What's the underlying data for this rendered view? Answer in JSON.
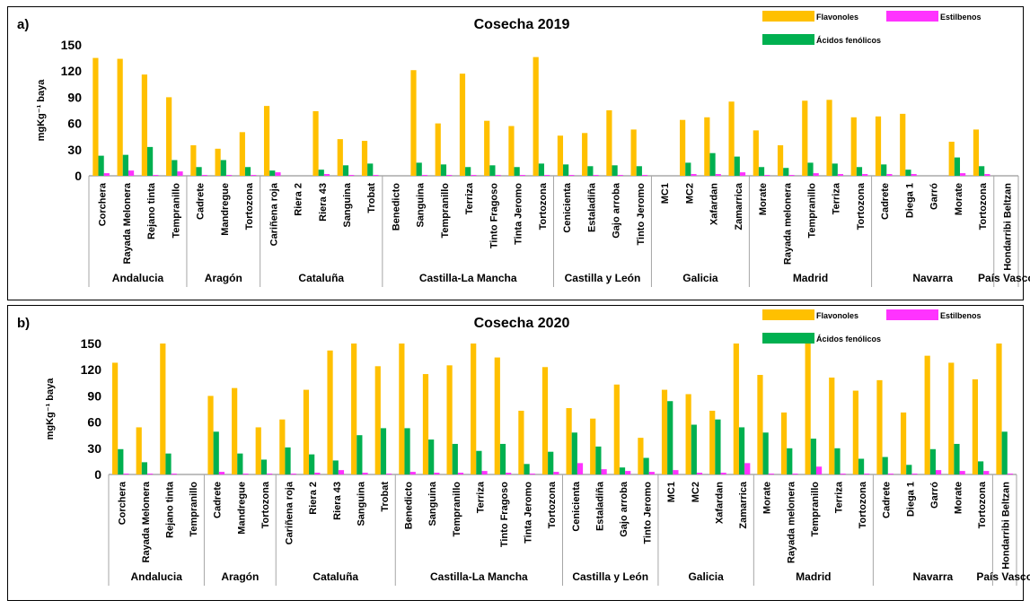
{
  "colors": {
    "flavonoles": "#FFC000",
    "acidos": "#00B050",
    "estilbenos": "#FF33FF"
  },
  "chart_data": [
    {
      "type": "bar",
      "panel_label": "a)",
      "title": "Cosecha 2019",
      "ylabel": "mgKg⁻¹ baya",
      "ylim": [
        0,
        150
      ],
      "yticks": [
        0,
        30,
        60,
        90,
        120,
        150
      ],
      "legend": {
        "placement": "top-right"
      },
      "series_names": [
        "Flavonoles",
        "Estilbenos",
        "Ácidos fenólicos"
      ],
      "groups": [
        "Andalucia",
        "Aragón",
        "Cataluña",
        "Castilla-La Mancha",
        "Castilla y León",
        "Galicia",
        "Madrid",
        "Navarra",
        "País Vasco"
      ],
      "categories": [
        {
          "label": "Corchera",
          "group": "Andalucia"
        },
        {
          "label": "Rayada Melonera",
          "group": "Andalucia"
        },
        {
          "label": "Rejano tinta",
          "group": "Andalucia"
        },
        {
          "label": "Tempranillo",
          "group": "Andalucia"
        },
        {
          "label": "Cadrete",
          "group": "Aragón"
        },
        {
          "label": "Mandregue",
          "group": "Aragón"
        },
        {
          "label": "Tortozona",
          "group": "Aragón"
        },
        {
          "label": "Cariñena roja",
          "group": "Cataluña"
        },
        {
          "label": "Riera 2",
          "group": "Cataluña"
        },
        {
          "label": "Riera 43",
          "group": "Cataluña"
        },
        {
          "label": "Sanguina",
          "group": "Cataluña"
        },
        {
          "label": "Trobat",
          "group": "Cataluña"
        },
        {
          "label": "Benedicto",
          "group": "Castilla-La Mancha"
        },
        {
          "label": "Sanguina",
          "group": "Castilla-La Mancha"
        },
        {
          "label": "Tempranillo",
          "group": "Castilla-La Mancha"
        },
        {
          "label": "Terriza",
          "group": "Castilla-La Mancha"
        },
        {
          "label": "Tinto Fragoso",
          "group": "Castilla-La Mancha"
        },
        {
          "label": "Tinta Jeromo",
          "group": "Castilla-La Mancha"
        },
        {
          "label": "Tortozona",
          "group": "Castilla-La Mancha"
        },
        {
          "label": "Cenicienta",
          "group": "Castilla y León"
        },
        {
          "label": "Estaladiña",
          "group": "Castilla y León"
        },
        {
          "label": "Gajo arroba",
          "group": "Castilla y León"
        },
        {
          "label": "Tinto Jeromo",
          "group": "Castilla y León"
        },
        {
          "label": "MC1",
          "group": "Galicia"
        },
        {
          "label": "MC2",
          "group": "Galicia"
        },
        {
          "label": "Xafardan",
          "group": "Galicia"
        },
        {
          "label": "Zamarrica",
          "group": "Galicia"
        },
        {
          "label": "Morate",
          "group": "Madrid"
        },
        {
          "label": "Rayada melonera",
          "group": "Madrid"
        },
        {
          "label": "Tempranillo",
          "group": "Madrid"
        },
        {
          "label": "Terriza",
          "group": "Madrid"
        },
        {
          "label": "Tortozona",
          "group": "Madrid"
        },
        {
          "label": "Cadrete",
          "group": "Navarra"
        },
        {
          "label": "Diega 1",
          "group": "Navarra"
        },
        {
          "label": "Garró",
          "group": "Navarra"
        },
        {
          "label": "Morate",
          "group": "Navarra"
        },
        {
          "label": "Tortozona",
          "group": "Navarra"
        },
        {
          "label": "Hondarribi Beltzan",
          "group": "País Vasco"
        }
      ],
      "series": [
        {
          "name": "Flavonoles",
          "values": [
            135,
            134,
            116,
            90,
            35,
            31,
            50,
            80,
            0,
            74,
            42,
            40,
            0,
            121,
            60,
            117,
            63,
            57,
            136,
            46,
            49,
            75,
            53,
            0,
            64,
            67,
            85,
            52,
            35,
            86,
            87,
            67,
            68,
            71,
            0,
            39,
            53,
            0
          ]
        },
        {
          "name": "Ácidos fenólicos",
          "values": [
            23,
            24,
            33,
            18,
            10,
            18,
            10,
            6,
            0,
            7,
            12,
            14,
            0,
            15,
            13,
            10,
            12,
            10,
            14,
            13,
            11,
            12,
            11,
            0,
            15,
            26,
            22,
            10,
            9,
            15,
            14,
            10,
            13,
            7,
            0,
            21,
            11,
            0
          ]
        },
        {
          "name": "Estilbenos",
          "values": [
            3,
            6,
            1,
            5,
            1,
            1,
            1,
            4,
            0,
            2,
            1,
            1,
            0,
            1,
            1,
            1,
            1,
            1,
            1,
            1,
            1,
            1,
            1,
            0,
            2,
            2,
            4,
            1,
            1,
            3,
            2,
            2,
            2,
            2,
            0,
            3,
            2,
            0
          ]
        }
      ]
    },
    {
      "type": "bar",
      "panel_label": "b)",
      "title": "Cosecha 2020",
      "ylabel": "mgKg⁻¹ baya",
      "ylim": [
        0,
        150
      ],
      "yticks": [
        0,
        30,
        60,
        90,
        120,
        150
      ],
      "legend": {
        "placement": "top-right"
      },
      "series_names": [
        "Flavonoles",
        "Estilbenos",
        "Ácidos fenólicos"
      ],
      "groups": [
        "Andalucia",
        "Aragón",
        "Cataluña",
        "Castilla-La Mancha",
        "Castilla y León",
        "Galicia",
        "Madrid",
        "Navarra",
        "País Vasco"
      ],
      "categories": [
        {
          "label": "Corchera",
          "group": "Andalucia"
        },
        {
          "label": "Rayada Melonera",
          "group": "Andalucia"
        },
        {
          "label": "Rejano tinta",
          "group": "Andalucia"
        },
        {
          "label": "Tempranillo",
          "group": "Andalucia"
        },
        {
          "label": "Cadrete",
          "group": "Aragón"
        },
        {
          "label": "Mandregue",
          "group": "Aragón"
        },
        {
          "label": "Tortozona",
          "group": "Aragón"
        },
        {
          "label": "Cariñena roja",
          "group": "Cataluña"
        },
        {
          "label": "Riera 2",
          "group": "Cataluña"
        },
        {
          "label": "Riera 43",
          "group": "Cataluña"
        },
        {
          "label": "Sanguina",
          "group": "Cataluña"
        },
        {
          "label": "Trobat",
          "group": "Cataluña"
        },
        {
          "label": "Benedicto",
          "group": "Castilla-La Mancha"
        },
        {
          "label": "Sanguina",
          "group": "Castilla-La Mancha"
        },
        {
          "label": "Tempranillo",
          "group": "Castilla-La Mancha"
        },
        {
          "label": "Terriza",
          "group": "Castilla-La Mancha"
        },
        {
          "label": "Tinto Fragoso",
          "group": "Castilla-La Mancha"
        },
        {
          "label": "Tinta Jeromo",
          "group": "Castilla-La Mancha"
        },
        {
          "label": "Tortozona",
          "group": "Castilla-La Mancha"
        },
        {
          "label": "Cenicienta",
          "group": "Castilla y León"
        },
        {
          "label": "Estaladiña",
          "group": "Castilla y León"
        },
        {
          "label": "Gajo arroba",
          "group": "Castilla y León"
        },
        {
          "label": "Tinto Jeromo",
          "group": "Castilla y León"
        },
        {
          "label": "MC1",
          "group": "Galicia"
        },
        {
          "label": "MC2",
          "group": "Galicia"
        },
        {
          "label": "Xafardan",
          "group": "Galicia"
        },
        {
          "label": "Zamarrica",
          "group": "Galicia"
        },
        {
          "label": "Morate",
          "group": "Madrid"
        },
        {
          "label": "Rayada melonera",
          "group": "Madrid"
        },
        {
          "label": "Tempranillo",
          "group": "Madrid"
        },
        {
          "label": "Terriza",
          "group": "Madrid"
        },
        {
          "label": "Tortozona",
          "group": "Madrid"
        },
        {
          "label": "Cadrete",
          "group": "Navarra"
        },
        {
          "label": "Diega 1",
          "group": "Navarra"
        },
        {
          "label": "Garró",
          "group": "Navarra"
        },
        {
          "label": "Morate",
          "group": "Navarra"
        },
        {
          "label": "Tortozona",
          "group": "Navarra"
        },
        {
          "label": "Hondarribi Beltzan",
          "group": "País Vasco"
        }
      ],
      "series": [
        {
          "name": "Flavonoles",
          "values": [
            128,
            54,
            150,
            0,
            90,
            99,
            54,
            63,
            97,
            142,
            150,
            124,
            150,
            115,
            125,
            150,
            134,
            73,
            123,
            76,
            64,
            103,
            42,
            97,
            92,
            73,
            150,
            114,
            71,
            150,
            111,
            96,
            108,
            71,
            136,
            128,
            109,
            150
          ]
        },
        {
          "name": "Ácidos fenólicos",
          "values": [
            29,
            14,
            24,
            0,
            49,
            24,
            17,
            31,
            23,
            16,
            45,
            53,
            53,
            40,
            35,
            27,
            35,
            12,
            26,
            48,
            32,
            8,
            19,
            84,
            57,
            63,
            54,
            48,
            30,
            41,
            30,
            18,
            20,
            11,
            29,
            35,
            15,
            49
          ]
        },
        {
          "name": "Estilbenos",
          "values": [
            1,
            1,
            1,
            0,
            3,
            1,
            1,
            1,
            2,
            5,
            2,
            1,
            3,
            2,
            2,
            4,
            2,
            1,
            3,
            13,
            6,
            4,
            3,
            5,
            2,
            2,
            13,
            1,
            1,
            9,
            1,
            1,
            1,
            1,
            5,
            4,
            4,
            1
          ]
        }
      ]
    }
  ]
}
